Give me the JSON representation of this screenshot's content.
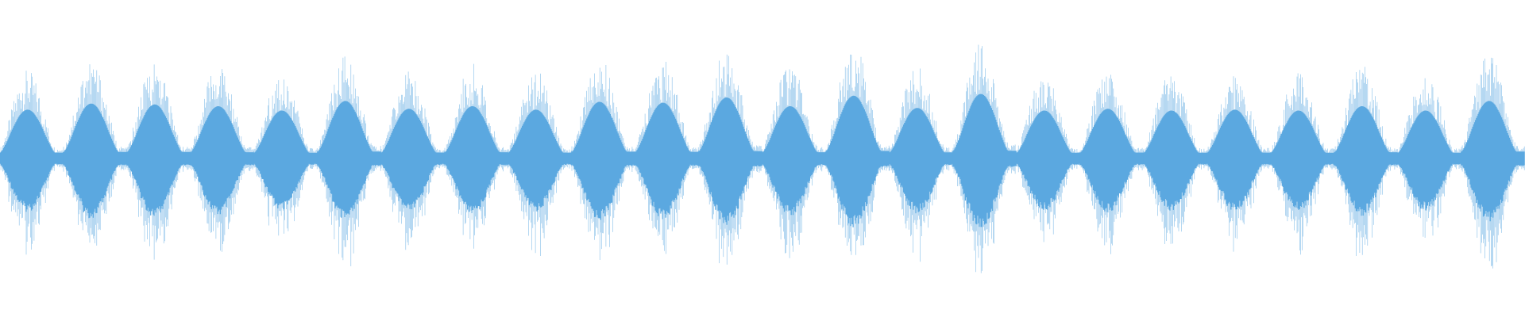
{
  "waveform": {
    "color": "#5ba8e0",
    "peaks": [
      0.56,
      0.63,
      0.62,
      0.6,
      0.55,
      0.66,
      0.57,
      0.6,
      0.56,
      0.65,
      0.64,
      0.7,
      0.6,
      0.72,
      0.58,
      0.74,
      0.55,
      0.57,
      0.55,
      0.56,
      0.55,
      0.6,
      0.55,
      0.66
    ]
  }
}
